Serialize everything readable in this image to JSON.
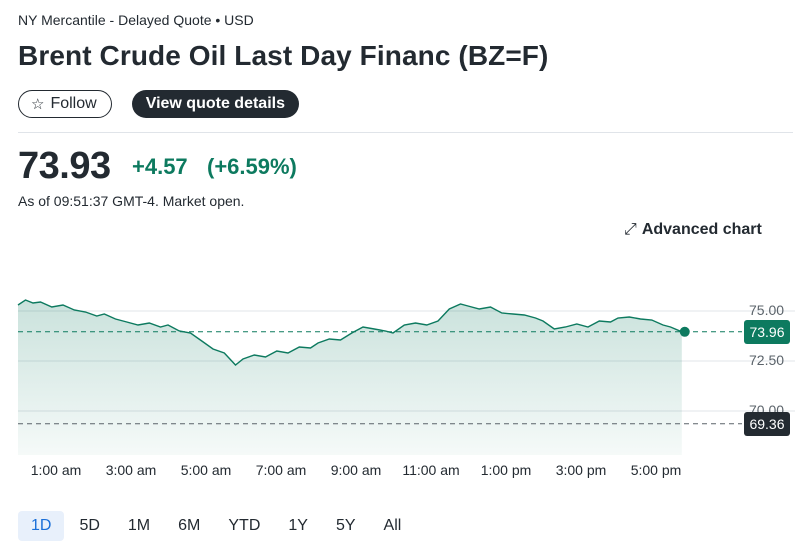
{
  "header": {
    "exchange": "NY Mercantile - Delayed Quote • USD",
    "title": "Brent Crude Oil Last Day Financ (BZ=F)",
    "follow_label": "Follow",
    "quote_details_label": "View quote details"
  },
  "quote": {
    "price": "73.93",
    "change": "+4.57",
    "change_percent": "(+6.59%)",
    "as_of": "As of 09:51:37 GMT-4. Market open.",
    "change_color": "#0d7a5f"
  },
  "advanced_chart_label": "Advanced chart",
  "icons": {
    "follow": "star-icon",
    "advanced_chart": "expand-arrows-icon"
  },
  "chart_data": {
    "type": "area",
    "x_ticks": [
      "1:00 am",
      "3:00 am",
      "5:00 am",
      "7:00 am",
      "9:00 am",
      "11:00 am",
      "1:00 pm",
      "3:00 pm",
      "5:00 pm"
    ],
    "y_ticks": [
      "75.00",
      "72.50",
      "70.00"
    ],
    "ylim": [
      69.0,
      75.5
    ],
    "series": [
      {
        "color": "#0d7a5f",
        "x": [
          0.0,
          0.1,
          0.2,
          0.3,
          0.45,
          0.6,
          0.75,
          0.9,
          1.05,
          1.15,
          1.3,
          1.45,
          1.6,
          1.75,
          1.9,
          2.0,
          2.15,
          2.3,
          2.45,
          2.6,
          2.75,
          2.9,
          3.0,
          3.15,
          3.3,
          3.45,
          3.6,
          3.75,
          3.9,
          4.0,
          4.15,
          4.3,
          4.45,
          4.6,
          4.75,
          4.9,
          5.0,
          5.15,
          5.3,
          5.45,
          5.6,
          5.75,
          5.9,
          6.0,
          6.15,
          6.3,
          6.45,
          6.6,
          6.75,
          6.9,
          7.0,
          7.15,
          7.3,
          7.45,
          7.6,
          7.75,
          7.9,
          8.0,
          8.15,
          8.3,
          8.45,
          8.6,
          8.7,
          8.85
        ],
        "values": [
          75.3,
          75.55,
          75.4,
          75.45,
          75.2,
          75.3,
          75.05,
          74.95,
          74.75,
          74.85,
          74.6,
          74.45,
          74.3,
          74.4,
          74.2,
          74.3,
          74.0,
          73.9,
          73.5,
          73.1,
          72.9,
          72.3,
          72.6,
          72.8,
          72.7,
          73.0,
          72.9,
          73.2,
          73.15,
          73.4,
          73.6,
          73.55,
          73.9,
          74.2,
          74.1,
          74.0,
          73.9,
          74.3,
          74.4,
          74.3,
          74.5,
          75.1,
          75.35,
          75.25,
          75.1,
          75.2,
          74.9,
          74.85,
          74.8,
          74.65,
          74.5,
          74.1,
          74.2,
          74.35,
          74.2,
          74.5,
          74.45,
          74.65,
          74.7,
          74.6,
          74.55,
          74.3,
          74.2,
          73.96
        ]
      }
    ],
    "current_price": "73.96",
    "current_color": "#0d7a5f",
    "previous_close": "69.36",
    "previous_close_color": "#232a31",
    "grid": true
  },
  "ranges": {
    "items": [
      "1D",
      "5D",
      "1M",
      "6M",
      "YTD",
      "1Y",
      "5Y",
      "All"
    ],
    "active_index": 0
  }
}
